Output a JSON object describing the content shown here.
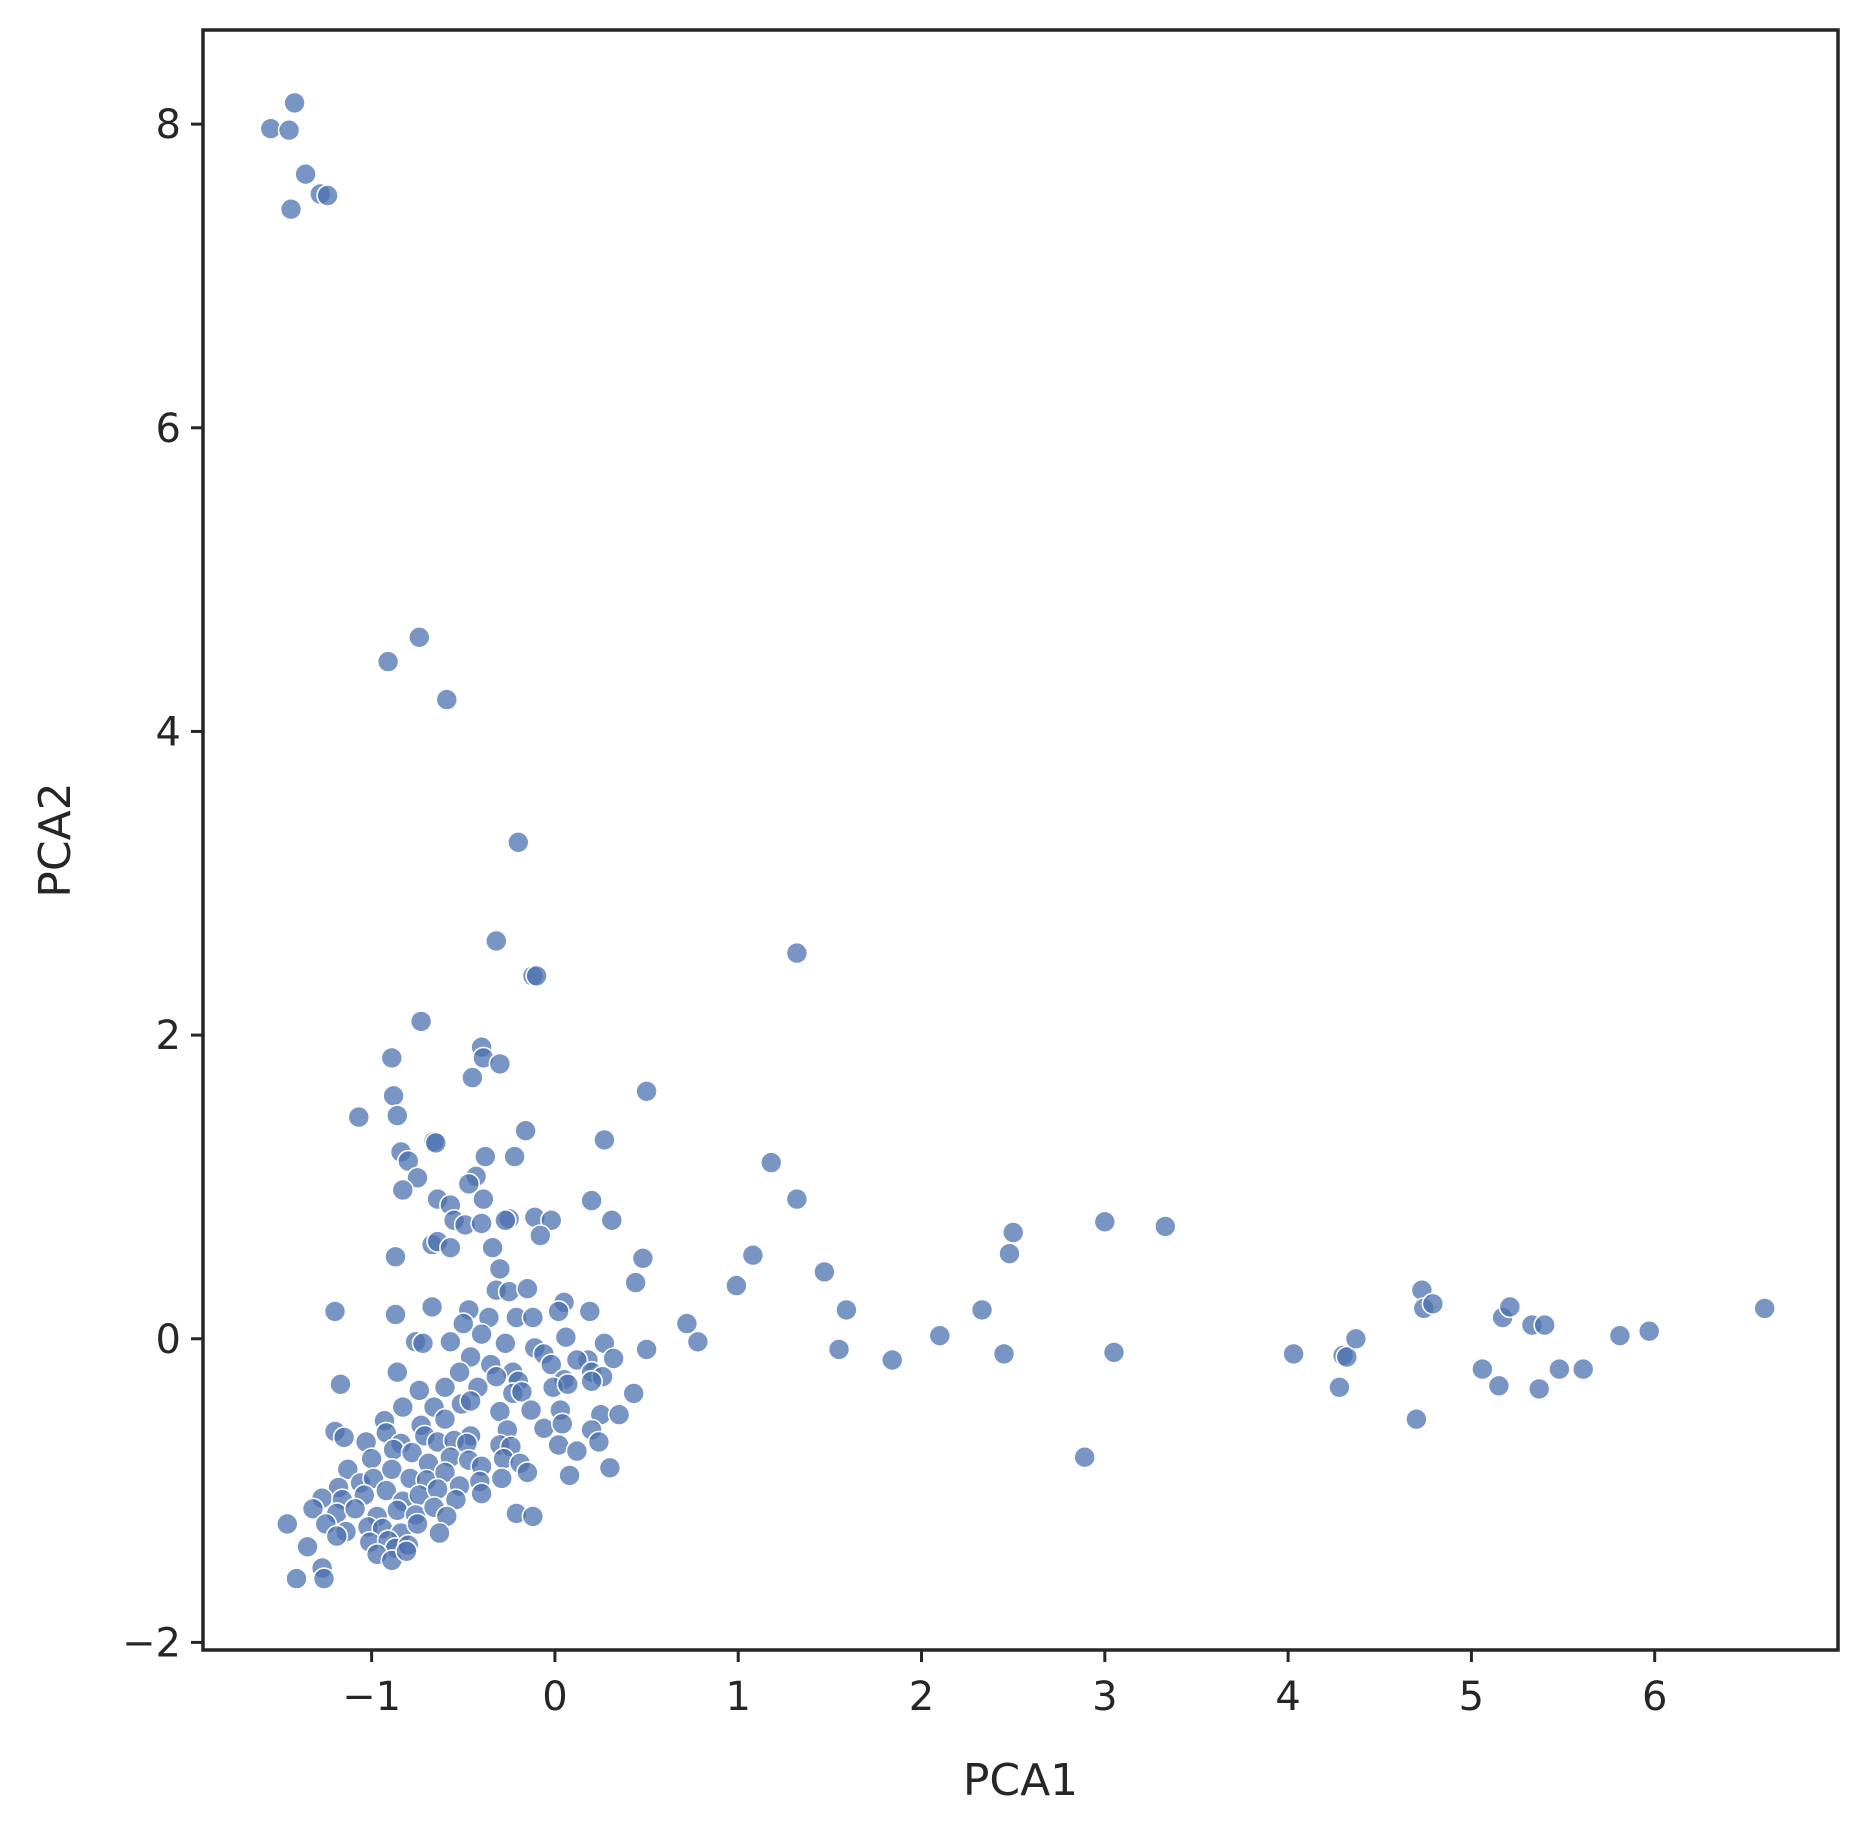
{
  "chart_data": {
    "type": "scatter",
    "title": "",
    "xlabel": "PCA1",
    "ylabel": "PCA2",
    "xlim": [
      -1.92,
      7.0
    ],
    "ylim": [
      -2.05,
      8.62
    ],
    "xticks": [
      -1,
      0,
      1,
      2,
      3,
      4,
      5,
      6
    ],
    "yticks": [
      -2,
      0,
      2,
      4,
      6,
      8
    ],
    "xtick_labels": [
      "−1",
      "0",
      "1",
      "2",
      "3",
      "4",
      "5",
      "6"
    ],
    "ytick_labels": [
      "−2",
      "0",
      "2",
      "4",
      "6",
      "8"
    ],
    "grid": false,
    "legend": false,
    "colors": {
      "point": "#4c72b0",
      "frame": "#262626"
    },
    "series": [
      {
        "points": [
          [
            -1.55,
            7.97
          ],
          [
            -1.45,
            7.96
          ],
          [
            -1.42,
            8.14
          ],
          [
            -1.36,
            7.67
          ],
          [
            -1.28,
            7.54
          ],
          [
            -1.24,
            7.53
          ],
          [
            -1.44,
            7.44
          ],
          [
            -0.74,
            4.62
          ],
          [
            -0.91,
            4.46
          ],
          [
            -0.59,
            4.21
          ],
          [
            -0.2,
            3.27
          ],
          [
            -0.32,
            2.62
          ],
          [
            -0.12,
            2.39
          ],
          [
            -0.1,
            2.39
          ],
          [
            1.32,
            2.54
          ],
          [
            -0.73,
            2.09
          ],
          [
            -0.89,
            1.85
          ],
          [
            -0.4,
            1.92
          ],
          [
            -0.39,
            1.85
          ],
          [
            -0.3,
            1.81
          ],
          [
            -0.45,
            1.72
          ],
          [
            -0.88,
            1.6
          ],
          [
            -0.86,
            1.47
          ],
          [
            -1.07,
            1.46
          ],
          [
            0.5,
            1.63
          ],
          [
            -0.16,
            1.37
          ],
          [
            0.27,
            1.31
          ],
          [
            -0.66,
            1.3
          ],
          [
            -0.65,
            1.29
          ],
          [
            -0.84,
            1.23
          ],
          [
            -0.8,
            1.17
          ],
          [
            -0.38,
            1.2
          ],
          [
            -0.22,
            1.2
          ],
          [
            -0.75,
            1.06
          ],
          [
            -0.43,
            1.07
          ],
          [
            -0.47,
            1.02
          ],
          [
            -0.83,
            0.98
          ],
          [
            -0.64,
            0.92
          ],
          [
            -0.57,
            0.88
          ],
          [
            -0.39,
            0.92
          ],
          [
            0.2,
            0.91
          ],
          [
            -0.55,
            0.78
          ],
          [
            -0.49,
            0.75
          ],
          [
            -0.4,
            0.76
          ],
          [
            -0.25,
            0.79
          ],
          [
            -0.27,
            0.78
          ],
          [
            -0.11,
            0.8
          ],
          [
            -0.02,
            0.78
          ],
          [
            0.31,
            0.78
          ],
          [
            -0.67,
            0.62
          ],
          [
            -0.64,
            0.64
          ],
          [
            -0.57,
            0.6
          ],
          [
            -0.34,
            0.6
          ],
          [
            -0.08,
            0.68
          ],
          [
            -0.87,
            0.54
          ],
          [
            0.48,
            0.53
          ],
          [
            -0.3,
            0.46
          ],
          [
            0.44,
            0.37
          ],
          [
            -0.32,
            0.32
          ],
          [
            -0.25,
            0.31
          ],
          [
            -0.15,
            0.33
          ],
          [
            0.05,
            0.24
          ],
          [
            -0.67,
            0.21
          ],
          [
            -0.21,
            0.14
          ],
          [
            -0.47,
            0.19
          ],
          [
            -0.12,
            0.14
          ],
          [
            0.02,
            0.18
          ],
          [
            -0.36,
            0.14
          ],
          [
            0.19,
            0.18
          ],
          [
            -0.87,
            0.16
          ],
          [
            -1.2,
            0.18
          ],
          [
            -0.76,
            -0.02
          ],
          [
            -0.72,
            -0.03
          ],
          [
            -0.57,
            -0.02
          ],
          [
            -0.5,
            0.1
          ],
          [
            -0.4,
            0.03
          ],
          [
            -0.27,
            -0.03
          ],
          [
            -0.11,
            -0.06
          ],
          [
            -0.06,
            -0.1
          ],
          [
            0.06,
            0.01
          ],
          [
            0.18,
            -0.14
          ],
          [
            0.27,
            -0.03
          ],
          [
            0.32,
            -0.13
          ],
          [
            0.5,
            -0.07
          ],
          [
            -0.46,
            -0.12
          ],
          [
            -0.35,
            -0.17
          ],
          [
            -0.23,
            -0.22
          ],
          [
            -0.02,
            -0.17
          ],
          [
            0.12,
            -0.14
          ],
          [
            -0.86,
            -0.22
          ],
          [
            -0.52,
            -0.22
          ],
          [
            -0.32,
            -0.25
          ],
          [
            -0.2,
            -0.28
          ],
          [
            0.05,
            -0.27
          ],
          [
            0.2,
            -0.22
          ],
          [
            0.26,
            -0.25
          ],
          [
            0.43,
            -0.36
          ],
          [
            -1.17,
            -0.3
          ],
          [
            -0.74,
            -0.34
          ],
          [
            -0.6,
            -0.32
          ],
          [
            -0.42,
            -0.32
          ],
          [
            -0.23,
            -0.36
          ],
          [
            -0.18,
            -0.35
          ],
          [
            -0.01,
            -0.32
          ],
          [
            0.07,
            -0.3
          ],
          [
            0.2,
            -0.28
          ],
          [
            -0.83,
            -0.45
          ],
          [
            -0.66,
            -0.45
          ],
          [
            -0.51,
            -0.43
          ],
          [
            -0.46,
            -0.41
          ],
          [
            -0.3,
            -0.48
          ],
          [
            -0.13,
            -0.47
          ],
          [
            0.03,
            -0.47
          ],
          [
            0.25,
            -0.5
          ],
          [
            0.35,
            -0.5
          ],
          [
            -0.93,
            -0.54
          ],
          [
            -0.73,
            -0.57
          ],
          [
            -0.6,
            -0.53
          ],
          [
            -0.46,
            -0.64
          ],
          [
            -0.26,
            -0.6
          ],
          [
            -0.06,
            -0.59
          ],
          [
            0.04,
            -0.56
          ],
          [
            0.2,
            -0.6
          ],
          [
            -1.2,
            -0.61
          ],
          [
            -1.15,
            -0.65
          ],
          [
            -1.03,
            -0.68
          ],
          [
            -0.92,
            -0.62
          ],
          [
            -0.84,
            -0.69
          ],
          [
            -0.71,
            -0.64
          ],
          [
            -0.64,
            -0.68
          ],
          [
            -0.55,
            -0.67
          ],
          [
            -0.48,
            -0.69
          ],
          [
            -0.3,
            -0.7
          ],
          [
            -0.24,
            -0.71
          ],
          [
            0.02,
            -0.7
          ],
          [
            0.12,
            -0.74
          ],
          [
            0.24,
            -0.68
          ],
          [
            -1.13,
            -0.86
          ],
          [
            -1.0,
            -0.79
          ],
          [
            -0.88,
            -0.73
          ],
          [
            -0.78,
            -0.75
          ],
          [
            -0.69,
            -0.82
          ],
          [
            -0.57,
            -0.78
          ],
          [
            -0.47,
            -0.8
          ],
          [
            -0.4,
            -0.84
          ],
          [
            -0.28,
            -0.79
          ],
          [
            -0.19,
            -0.82
          ],
          [
            -0.15,
            -0.88
          ],
          [
            0.08,
            -0.9
          ],
          [
            0.3,
            -0.85
          ],
          [
            -1.18,
            -0.98
          ],
          [
            -1.06,
            -0.95
          ],
          [
            -0.99,
            -0.92
          ],
          [
            -0.89,
            -0.86
          ],
          [
            -0.79,
            -0.92
          ],
          [
            -0.7,
            -0.93
          ],
          [
            -0.6,
            -0.88
          ],
          [
            -0.52,
            -0.97
          ],
          [
            -0.41,
            -0.94
          ],
          [
            -0.29,
            -0.92
          ],
          [
            -1.27,
            -1.05
          ],
          [
            -1.16,
            -1.06
          ],
          [
            -1.04,
            -1.03
          ],
          [
            -0.92,
            -1.0
          ],
          [
            -0.83,
            -1.07
          ],
          [
            -0.74,
            -1.03
          ],
          [
            -0.64,
            -0.99
          ],
          [
            -0.54,
            -1.06
          ],
          [
            -0.4,
            -1.02
          ],
          [
            -1.32,
            -1.12
          ],
          [
            -1.19,
            -1.15
          ],
          [
            -1.09,
            -1.12
          ],
          [
            -0.97,
            -1.17
          ],
          [
            -0.86,
            -1.13
          ],
          [
            -0.76,
            -1.16
          ],
          [
            -0.66,
            -1.11
          ],
          [
            -0.59,
            -1.17
          ],
          [
            -0.21,
            -1.15
          ],
          [
            -0.12,
            -1.17
          ],
          [
            -1.46,
            -1.22
          ],
          [
            -1.25,
            -1.22
          ],
          [
            -1.14,
            -1.27
          ],
          [
            -1.02,
            -1.24
          ],
          [
            -0.94,
            -1.25
          ],
          [
            -0.84,
            -1.28
          ],
          [
            -0.75,
            -1.22
          ],
          [
            -0.63,
            -1.28
          ],
          [
            -1.19,
            -1.3
          ],
          [
            -1.01,
            -1.34
          ],
          [
            -0.91,
            -1.33
          ],
          [
            -0.87,
            -1.38
          ],
          [
            -0.8,
            -1.36
          ],
          [
            -1.35,
            -1.37
          ],
          [
            -0.97,
            -1.42
          ],
          [
            -0.89,
            -1.46
          ],
          [
            -0.81,
            -1.4
          ],
          [
            -1.27,
            -1.51
          ],
          [
            -1.41,
            -1.58
          ],
          [
            -1.26,
            -1.58
          ],
          [
            0.72,
            0.1
          ],
          [
            0.78,
            -0.02
          ],
          [
            0.99,
            0.35
          ],
          [
            1.08,
            0.55
          ],
          [
            1.18,
            1.16
          ],
          [
            1.32,
            0.92
          ],
          [
            1.47,
            0.44
          ],
          [
            1.55,
            -0.07
          ],
          [
            1.59,
            0.19
          ],
          [
            1.84,
            -0.14
          ],
          [
            2.1,
            0.02
          ],
          [
            2.33,
            0.19
          ],
          [
            2.45,
            -0.1
          ],
          [
            2.48,
            0.56
          ],
          [
            2.5,
            0.7
          ],
          [
            2.89,
            -0.78
          ],
          [
            3.0,
            0.77
          ],
          [
            3.05,
            -0.09
          ],
          [
            3.33,
            0.74
          ],
          [
            4.03,
            -0.1
          ],
          [
            4.28,
            -0.32
          ],
          [
            4.3,
            -0.11
          ],
          [
            4.32,
            -0.12
          ],
          [
            4.37,
            0.0
          ],
          [
            4.7,
            -0.53
          ],
          [
            4.73,
            0.32
          ],
          [
            4.74,
            0.2
          ],
          [
            4.79,
            0.23
          ],
          [
            5.06,
            -0.2
          ],
          [
            5.15,
            -0.31
          ],
          [
            5.17,
            0.14
          ],
          [
            5.21,
            0.21
          ],
          [
            5.33,
            0.09
          ],
          [
            5.37,
            -0.33
          ],
          [
            5.4,
            0.09
          ],
          [
            5.48,
            -0.2
          ],
          [
            5.61,
            -0.2
          ],
          [
            5.81,
            0.02
          ],
          [
            5.97,
            0.05
          ],
          [
            6.6,
            0.2
          ]
        ]
      }
    ]
  }
}
